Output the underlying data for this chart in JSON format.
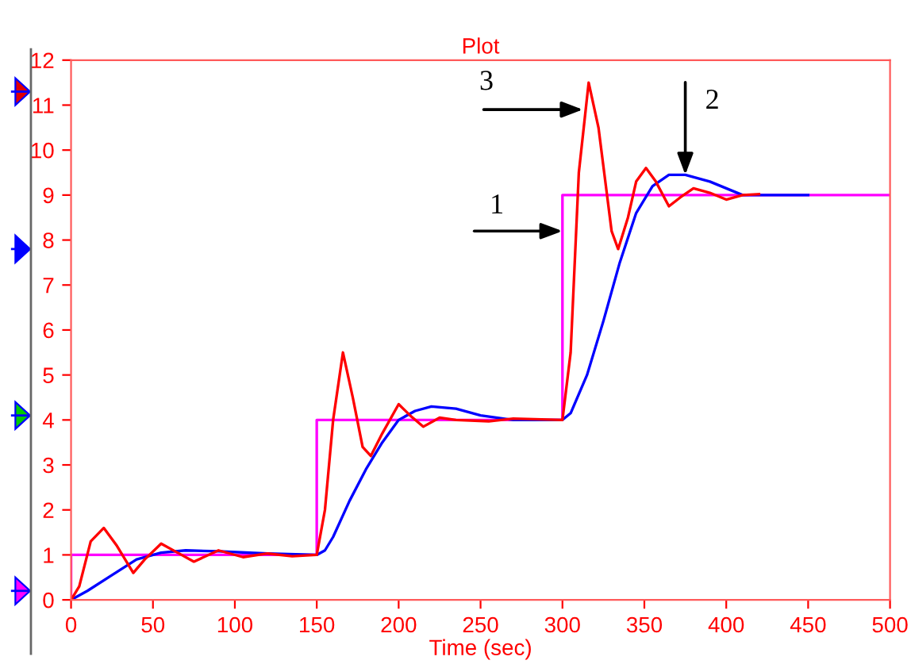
{
  "chart_data": {
    "type": "line",
    "title": "Plot",
    "xlabel": "Time (sec)",
    "xlim": [
      0,
      500
    ],
    "ylim": [
      0,
      12
    ],
    "xticks": [
      0,
      50,
      100,
      150,
      200,
      250,
      300,
      350,
      400,
      450,
      500
    ],
    "yticks": [
      0,
      1,
      2,
      3,
      4,
      5,
      6,
      7,
      8,
      9,
      10,
      11,
      12
    ],
    "grid": false,
    "legend": false,
    "marker": "none",
    "line_style": "solid",
    "series": [
      {
        "color": "#ff00ff",
        "x": [
          0,
          0,
          150,
          150,
          300,
          300,
          500
        ],
        "values": [
          0,
          1,
          1,
          4,
          4,
          9,
          9
        ]
      },
      {
        "color": "#0000ff",
        "x": [
          0,
          10,
          25,
          40,
          55,
          70,
          90,
          120,
          150,
          155,
          160,
          170,
          180,
          190,
          200,
          210,
          220,
          235,
          250,
          270,
          300,
          305,
          315,
          325,
          335,
          345,
          355,
          365,
          375,
          390,
          410,
          450
        ],
        "values": [
          0,
          0.2,
          0.55,
          0.9,
          1.05,
          1.1,
          1.08,
          1.03,
          1.0,
          1.1,
          1.4,
          2.2,
          2.9,
          3.5,
          4.0,
          4.2,
          4.3,
          4.25,
          4.1,
          4.0,
          4.0,
          4.15,
          5.0,
          6.2,
          7.5,
          8.6,
          9.2,
          9.45,
          9.45,
          9.3,
          9.0,
          9.0
        ]
      },
      {
        "color": "#ff0000",
        "x": [
          0,
          5,
          12,
          20,
          28,
          38,
          45,
          55,
          65,
          75,
          90,
          105,
          120,
          135,
          150,
          155,
          160,
          166,
          172,
          178,
          183,
          190,
          200,
          207,
          215,
          225,
          235,
          255,
          270,
          300,
          305,
          310,
          316,
          322,
          330,
          334,
          340,
          345,
          351,
          357,
          365,
          372,
          380,
          390,
          400,
          410,
          420
        ],
        "values": [
          0,
          0.3,
          1.3,
          1.6,
          1.2,
          0.6,
          0.9,
          1.25,
          1.05,
          0.85,
          1.1,
          0.95,
          1.03,
          0.97,
          1.0,
          2.0,
          4.0,
          5.5,
          4.5,
          3.4,
          3.2,
          3.7,
          4.35,
          4.1,
          3.85,
          4.05,
          4.0,
          3.97,
          4.03,
          4.0,
          5.5,
          9.5,
          11.5,
          10.5,
          8.2,
          7.8,
          8.5,
          9.3,
          9.6,
          9.3,
          8.75,
          8.95,
          9.15,
          9.05,
          8.9,
          9.0,
          9.02
        ]
      }
    ],
    "annotations": [
      {
        "text": "1",
        "x": 300,
        "y": 8.2
      },
      {
        "text": "3",
        "x": 312.5,
        "y": 10.9
      },
      {
        "text": "2",
        "x": 375,
        "y": 9.45
      }
    ]
  }
}
